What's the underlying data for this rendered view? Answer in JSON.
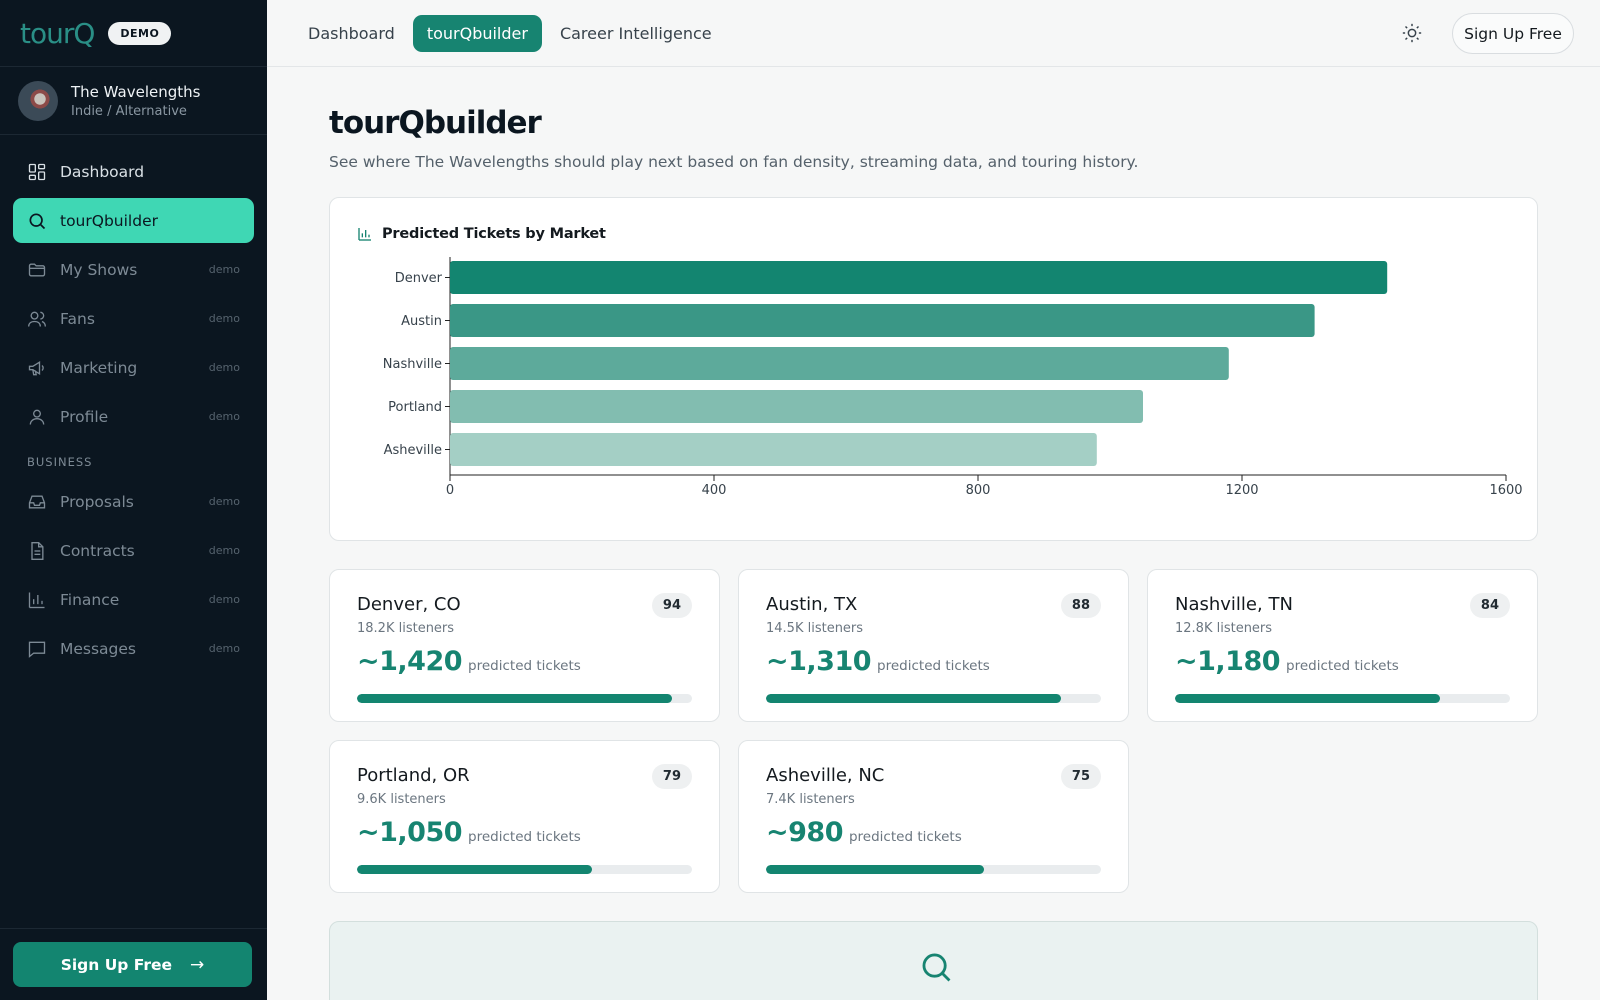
{
  "brand": {
    "logo": "tourQ",
    "badge": "DEMO"
  },
  "artist": {
    "name": "The Wavelengths",
    "genre": "Indie / Alternative"
  },
  "nav": {
    "items": [
      {
        "label": "Dashboard",
        "icon": "dashboard-icon",
        "tag": "",
        "state": "normal"
      },
      {
        "label": "tourQbuilder",
        "icon": "search-icon",
        "tag": "",
        "state": "active"
      },
      {
        "label": "My Shows",
        "icon": "folder-icon",
        "tag": "demo",
        "state": "disabled"
      },
      {
        "label": "Fans",
        "icon": "users-icon",
        "tag": "demo",
        "state": "disabled"
      },
      {
        "label": "Marketing",
        "icon": "megaphone-icon",
        "tag": "demo",
        "state": "disabled"
      },
      {
        "label": "Profile",
        "icon": "user-icon",
        "tag": "demo",
        "state": "disabled"
      }
    ],
    "section_label": "BUSINESS",
    "business_items": [
      {
        "label": "Proposals",
        "icon": "inbox-icon",
        "tag": "demo"
      },
      {
        "label": "Contracts",
        "icon": "document-icon",
        "tag": "demo"
      },
      {
        "label": "Finance",
        "icon": "bar-chart-icon",
        "tag": "demo"
      },
      {
        "label": "Messages",
        "icon": "message-icon",
        "tag": "demo"
      }
    ],
    "signup_label": "Sign Up Free"
  },
  "topbar": {
    "tabs": [
      {
        "label": "Dashboard",
        "active": false
      },
      {
        "label": "tourQbuilder",
        "active": true
      },
      {
        "label": "Career Intelligence",
        "active": false
      }
    ],
    "theme_icon": "sun-icon",
    "signup_label": "Sign Up Free"
  },
  "page": {
    "title": "tourQbuilder",
    "subtitle": "See where The Wavelengths should play next based on fan density, streaming data, and touring history."
  },
  "chart_data": {
    "type": "bar",
    "orientation": "horizontal",
    "title": "Predicted Tickets by Market",
    "categories": [
      "Denver",
      "Austin",
      "Nashville",
      "Portland",
      "Asheville"
    ],
    "values": [
      1420,
      1310,
      1180,
      1050,
      980
    ],
    "xlim": [
      0,
      1600
    ],
    "xticks": [
      0,
      400,
      800,
      1200,
      1600
    ],
    "xlabel": "",
    "ylabel": "",
    "grid": false,
    "colors": [
      "#138570",
      "#3a9786",
      "#5daa9b",
      "#82bdb0",
      "#a4cfc5"
    ]
  },
  "markets": [
    {
      "city": "Denver, CO",
      "listeners": "18.2K listeners",
      "score": "94",
      "tickets": "~1,420",
      "tickets_label": "predicted tickets",
      "progress": 0.94
    },
    {
      "city": "Austin, TX",
      "listeners": "14.5K listeners",
      "score": "88",
      "tickets": "~1,310",
      "tickets_label": "predicted tickets",
      "progress": 0.88
    },
    {
      "city": "Nashville, TN",
      "listeners": "12.8K listeners",
      "score": "84",
      "tickets": "~1,180",
      "tickets_label": "predicted tickets",
      "progress": 0.79
    },
    {
      "city": "Portland, OR",
      "listeners": "9.6K listeners",
      "score": "79",
      "tickets": "~1,050",
      "tickets_label": "predicted tickets",
      "progress": 0.7
    },
    {
      "city": "Asheville, NC",
      "listeners": "7.4K listeners",
      "score": "75",
      "tickets": "~980",
      "tickets_label": "predicted tickets",
      "progress": 0.65
    }
  ],
  "cta": {
    "icon": "search-icon"
  },
  "colors": {
    "accent": "#178471",
    "active_nav": "#3fd7b4",
    "sidebar_bg": "#0b1620"
  }
}
